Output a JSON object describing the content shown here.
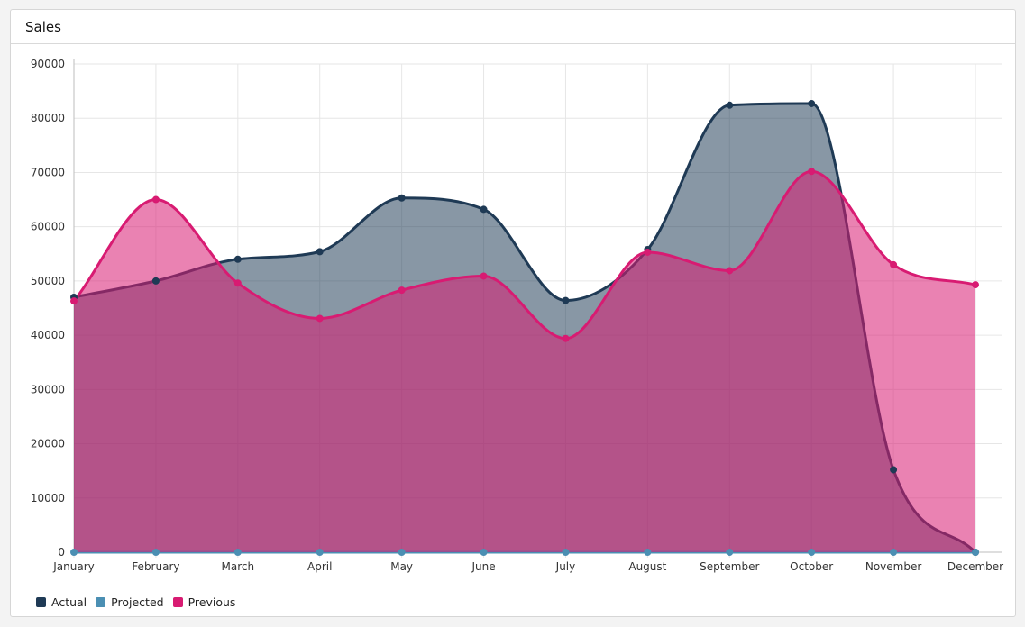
{
  "card": {
    "title": "Sales"
  },
  "chart_data": {
    "type": "area",
    "title": "Sales",
    "categories": [
      "January",
      "February",
      "March",
      "April",
      "May",
      "June",
      "July",
      "August",
      "September",
      "October",
      "November",
      "December"
    ],
    "ylim": [
      0,
      90000
    ],
    "yticks": [
      0,
      10000,
      20000,
      30000,
      40000,
      50000,
      60000,
      70000,
      80000,
      90000
    ],
    "grid": true,
    "legend_position": "bottom-left",
    "series": [
      {
        "name": "Actual",
        "color": "#1f3a55",
        "fill": "rgba(31,58,85,0.53)",
        "values": [
          47000,
          50000,
          54000,
          55400,
          65300,
          63200,
          46400,
          55800,
          82400,
          82700,
          15200,
          0
        ]
      },
      {
        "name": "Projected",
        "color": "#4b8fb3",
        "fill": "rgba(75,143,179,0.5)",
        "values": [
          0,
          0,
          0,
          0,
          0,
          0,
          0,
          0,
          0,
          0,
          0,
          0
        ]
      },
      {
        "name": "Previous",
        "color": "#d81b72",
        "fill": "rgba(216,27,114,0.55)",
        "values": [
          46300,
          65000,
          49600,
          43100,
          48300,
          50900,
          39400,
          55300,
          51900,
          70200,
          53000,
          49300
        ]
      }
    ]
  }
}
